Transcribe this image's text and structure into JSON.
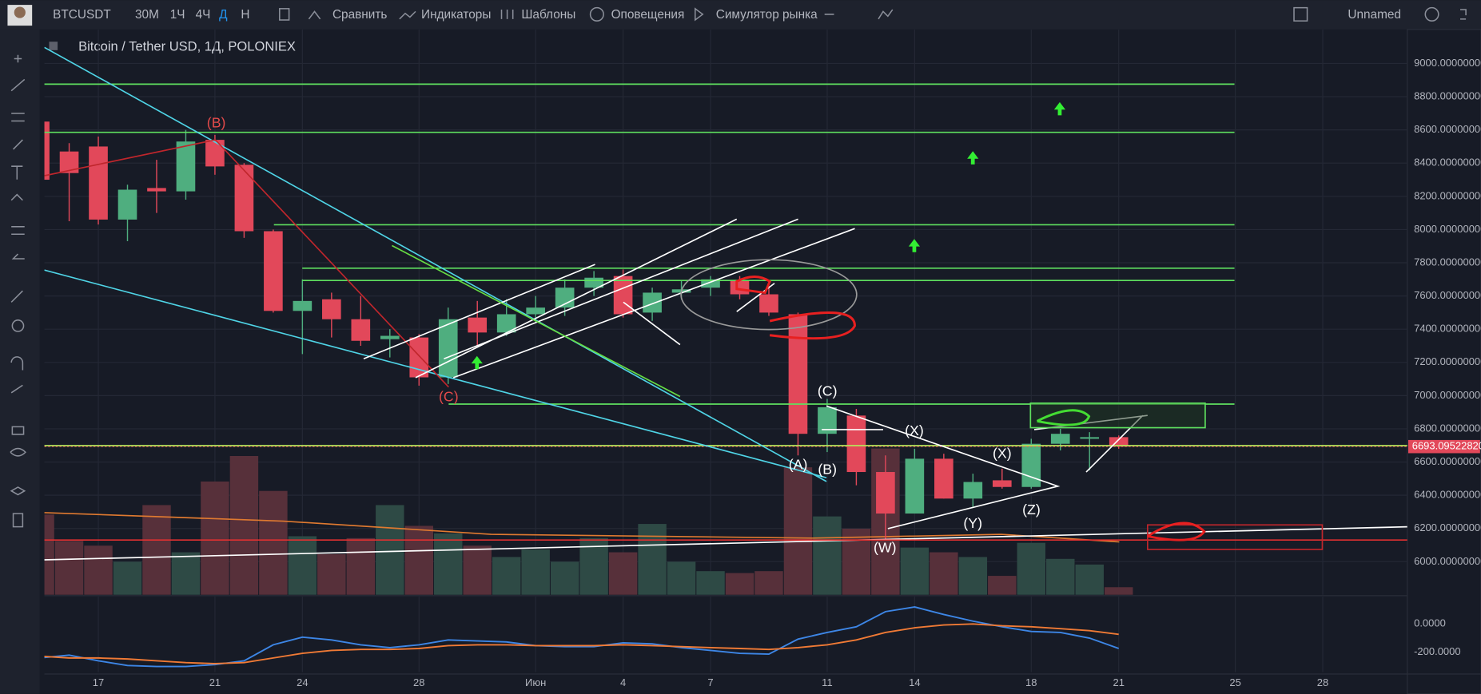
{
  "toolbar": {
    "symbol": "BTCUSDT",
    "intervals": [
      "30М",
      "1Ч",
      "4Ч",
      "Д",
      "Н"
    ],
    "buttons": [
      "Сравнить",
      "Индикаторы",
      "Шаблоны",
      "Оповещения",
      "Симулятор рынка"
    ],
    "layout_name": "Unnamed"
  },
  "chart_data": {
    "type": "candlestick",
    "title": "Bitcoin / Tether USD, 1Д, POLONIEX",
    "x": [
      0,
      1,
      2,
      3,
      4,
      5,
      6,
      7,
      8,
      9,
      10,
      11,
      12,
      13,
      14,
      15,
      16,
      17,
      18,
      19,
      20,
      21,
      22,
      23,
      24,
      25,
      26,
      27,
      28,
      29,
      30,
      31,
      32,
      33,
      34,
      35,
      36,
      37
    ],
    "open": [
      8650,
      8470,
      8500,
      8060,
      8250,
      8230,
      8540,
      8390,
      7990,
      7510,
      7580,
      7460,
      7340,
      7350,
      7110,
      7470,
      7380,
      7490,
      7530,
      7650,
      7720,
      7500,
      7620,
      7650,
      7690,
      7610,
      7490,
      6770,
      6880,
      6540,
      6290,
      6620,
      6380,
      6490,
      6450,
      6710,
      6740,
      6750
    ],
    "high": [
      8700,
      8520,
      8560,
      8270,
      8420,
      8600,
      8570,
      8400,
      8000,
      7700,
      7620,
      7600,
      7400,
      7370,
      7530,
      7570,
      7580,
      7600,
      7700,
      7750,
      7760,
      7650,
      7690,
      7720,
      7720,
      7660,
      7500,
      6980,
      6920,
      6640,
      6680,
      6650,
      6530,
      6560,
      6740,
      6800,
      6780,
      6760
    ],
    "low": [
      8200,
      8050,
      8030,
      7930,
      8100,
      8180,
      8330,
      7950,
      7500,
      7250,
      7350,
      7300,
      7230,
      7060,
      7070,
      7300,
      7360,
      7440,
      7480,
      7600,
      7470,
      7450,
      7580,
      7600,
      7580,
      7480,
      6640,
      6660,
      6460,
      6130,
      6290,
      6380,
      6330,
      6440,
      6440,
      6670,
      6550,
      6680
    ],
    "close": [
      8300,
      8340,
      8060,
      8240,
      8230,
      8530,
      8380,
      7990,
      7510,
      7570,
      7460,
      7330,
      7360,
      7110,
      7460,
      7380,
      7490,
      7530,
      7650,
      7710,
      7490,
      7620,
      7640,
      7700,
      7610,
      7500,
      6770,
      6930,
      6540,
      6290,
      6620,
      6380,
      6480,
      6450,
      6710,
      6770,
      6750,
      6693
    ],
    "up_color": "#4fae7f",
    "down_color": "#e2485a",
    "xlim": [
      0.15,
      46.9
    ],
    "ylim": [
      5801,
      9205
    ],
    "xticks": [
      {
        "value": 2,
        "label": "17"
      },
      {
        "value": 6,
        "label": "21"
      },
      {
        "value": 9,
        "label": "24"
      },
      {
        "value": 13,
        "label": "28"
      },
      {
        "value": 17,
        "label": "Июн"
      },
      {
        "value": 20,
        "label": "4"
      },
      {
        "value": 23,
        "label": "7"
      },
      {
        "value": 27,
        "label": "11"
      },
      {
        "value": 30,
        "label": "14"
      },
      {
        "value": 34,
        "label": "18"
      },
      {
        "value": 37,
        "label": "21"
      },
      {
        "value": 41,
        "label": "25"
      },
      {
        "value": 44,
        "label": "28"
      }
    ],
    "yticks": [
      {
        "value": 6000,
        "label": "6000.00000000"
      },
      {
        "value": 6200,
        "label": "6200.00000000"
      },
      {
        "value": 6400,
        "label": "6400.00000000"
      },
      {
        "value": 6600,
        "label": "6600.00000000"
      },
      {
        "value": 6800,
        "label": "6800.00000000"
      },
      {
        "value": 7000,
        "label": "7000.00000000"
      },
      {
        "value": 7200,
        "label": "7200.00000000"
      },
      {
        "value": 7400,
        "label": "7400.00000000"
      },
      {
        "value": 7600,
        "label": "7600.00000000"
      },
      {
        "value": 7800,
        "label": "7800.00000000"
      },
      {
        "value": 8000,
        "label": "8000.00000000"
      },
      {
        "value": 8200,
        "label": "8200.00000000"
      },
      {
        "value": 8400,
        "label": "8400.00000000"
      },
      {
        "value": 8600,
        "label": "8600.00000000"
      },
      {
        "value": 8800,
        "label": "8800.00000000"
      },
      {
        "value": 9000,
        "label": "9000.00000000"
      }
    ],
    "grid": true,
    "last_price": {
      "value": 6693.0952282,
      "label": "6693.09522820"
    },
    "volume": {
      "values": [
        85,
        57,
        52,
        35,
        95,
        45,
        120,
        147,
        110,
        62,
        43,
        60,
        95,
        73,
        65,
        52,
        40,
        48,
        35,
        60,
        45,
        75,
        35,
        25,
        23,
        25,
        135,
        83,
        70,
        155,
        50,
        45,
        40,
        20,
        55,
        38,
        32,
        8
      ],
      "ylim": [
        0,
        160
      ],
      "up_color": "#2e4a45",
      "down_color": "#57303a"
    },
    "indicator": {
      "ylim": [
        -340,
        193
      ],
      "yticks": [
        {
          "value": 0,
          "label": "0.0000"
        },
        {
          "value": -200,
          "label": "-200.0000"
        }
      ],
      "series": [
        {
          "color": "#3d86e6",
          "values": [
            -240,
            -220,
            -260,
            -293,
            -300,
            -300,
            -287,
            -260,
            -147,
            -93,
            -113,
            -147,
            -167,
            -147,
            -113,
            -120,
            -127,
            -153,
            -160,
            -160,
            -133,
            -140,
            -167,
            -187,
            -207,
            -213,
            -107,
            -60,
            -20,
            87,
            120,
            67,
            20,
            -20,
            -53,
            -60,
            -100,
            -173
          ]
        },
        {
          "color": "#f07a35",
          "values": [
            -227,
            -240,
            -240,
            -247,
            -260,
            -273,
            -280,
            -273,
            -240,
            -207,
            -187,
            -180,
            -180,
            -173,
            -153,
            -147,
            -147,
            -153,
            -153,
            -153,
            -147,
            -153,
            -160,
            -167,
            -173,
            -180,
            -167,
            -147,
            -113,
            -60,
            -27,
            -7,
            0,
            -13,
            -20,
            -33,
            -47,
            -73
          ]
        }
      ]
    },
    "annotations": [
      "(B)",
      "(C)",
      "(C)",
      "(A)",
      "(B)",
      "(X)",
      "(X)",
      "(Y)",
      "(Z)",
      "(W)"
    ]
  }
}
